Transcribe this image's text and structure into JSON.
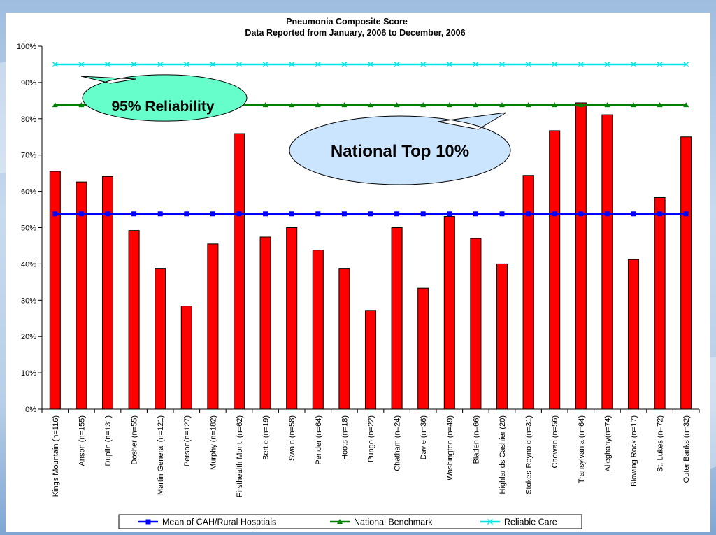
{
  "chart_data": {
    "type": "bar",
    "title": "Pneumonia Composite Score",
    "subtitle": "Data Reported from January, 2006 to December, 2006",
    "categories": [
      "Kings Mountain (n=116)",
      "Anson (n=155)",
      "Duplin (n=131)",
      "Dosher (n=55)",
      "Martin General (n=121)",
      "Person(n=127)",
      "Murphy (n=182)",
      "Firsthealth Mont. (n=62)",
      "Bertie (n=19)",
      "Swain (n=58)",
      "Pender (n=64)",
      "Hoots (n=18)",
      "Pungo (n=22)",
      "Chatham (n=24)",
      "Davie (n=36)",
      "Washington (n=49)",
      "Bladen (n=66)",
      "Highlands Cashier (20)",
      "Stokes-Reynold (n=31)",
      "Chowan (n=56)",
      "Transylvania (n=64)",
      "Alleghany(n=74)",
      "Blowing Rock (n=17)",
      "St. Lukes (n=72)",
      "Outer Banks (n=32)"
    ],
    "values": [
      65.5,
      62.6,
      64.1,
      49.2,
      38.8,
      28.4,
      45.5,
      75.9,
      47.4,
      50.0,
      43.8,
      38.8,
      27.2,
      50.0,
      33.3,
      53.1,
      47.0,
      40.0,
      64.4,
      76.7,
      84.4,
      81.1,
      41.2,
      58.3,
      75.0
    ],
    "bar_color": "#ff0000",
    "lines": [
      {
        "name": "Mean of CAH/Rural Hosptials",
        "value": 53.8,
        "color": "#0000ff",
        "marker": "square"
      },
      {
        "name": "National Benchmark",
        "value": 83.8,
        "color": "#008000",
        "marker": "triangle"
      },
      {
        "name": "Reliable Care",
        "value": 95.0,
        "color": "#00e5e5",
        "marker": "x"
      }
    ],
    "ylim": [
      0,
      100
    ],
    "yticks": [
      "0%",
      "10%",
      "20%",
      "30%",
      "40%",
      "50%",
      "60%",
      "70%",
      "80%",
      "90%",
      "100%"
    ],
    "grid": false,
    "legend_position": "bottom"
  },
  "callouts": [
    {
      "text": "95% Reliability",
      "color": "#66ffcc"
    },
    {
      "text": "National Top 10%",
      "color": "#cce5ff"
    }
  ]
}
